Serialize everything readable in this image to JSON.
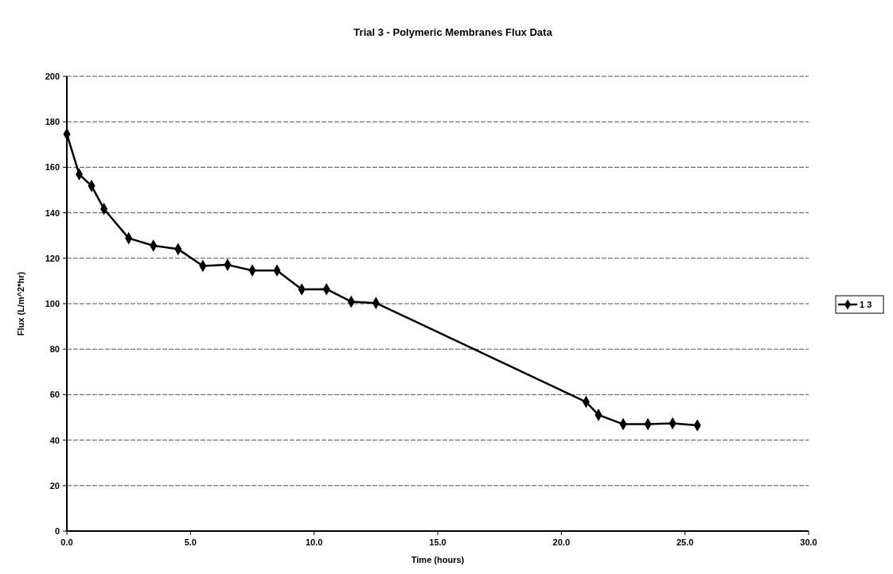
{
  "chart_data": {
    "type": "line",
    "title": "Trial 3 - Polymeric Membranes Flux Data",
    "xlabel": "Time (hours)",
    "ylabel": "Flux (L/m^2*hr)",
    "xlim": [
      0,
      30
    ],
    "xticks": [
      {
        "value": 0,
        "label": "0.0"
      },
      {
        "value": 5,
        "label": "5.0"
      },
      {
        "value": 10,
        "label": "10.0"
      },
      {
        "value": 15,
        "label": "15.0"
      },
      {
        "value": 20,
        "label": "20.0"
      },
      {
        "value": 25,
        "label": "25.0"
      },
      {
        "value": 30,
        "label": "30.0"
      }
    ],
    "ylim": [
      0,
      200
    ],
    "yticks": [
      0,
      20,
      40,
      60,
      80,
      100,
      120,
      140,
      160,
      180,
      200
    ],
    "grid": "y",
    "legend": "right",
    "marker": "diamond",
    "line_style": "solid",
    "series": [
      {
        "name": "1 3",
        "color": "#000000",
        "x": [
          0,
          0.5,
          1,
          1.5,
          2.5,
          3.5,
          4.5,
          5.5,
          6.5,
          7.5,
          8.5,
          9.5,
          10.5,
          11.5,
          12.5,
          21,
          21.5,
          22.5,
          23.5,
          24.5,
          25.5
        ],
        "values": [
          174.6,
          156.9,
          151.8,
          141.7,
          128.8,
          125.5,
          124,
          116.6,
          117.1,
          114.6,
          114.6,
          106.3,
          106.4,
          100.9,
          100.3,
          56.8,
          51.1,
          47,
          47,
          47.4,
          46.5
        ]
      }
    ]
  }
}
